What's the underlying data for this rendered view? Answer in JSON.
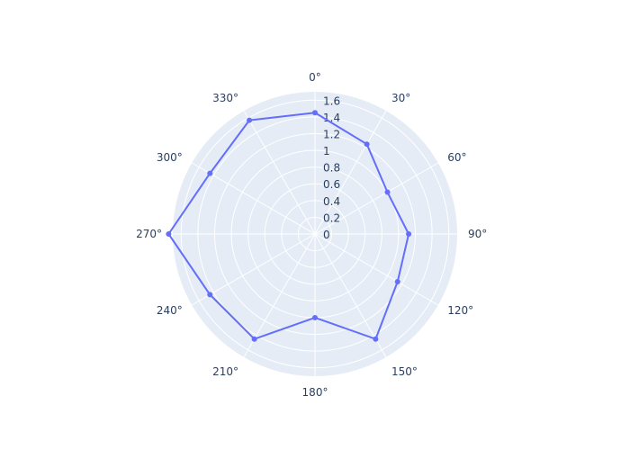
{
  "chart_data": {
    "type": "polar-line",
    "theta_unit": "degrees",
    "direction": "clockwise",
    "rotation": "0° at top",
    "r_range": [
      0,
      1.7
    ],
    "r_ticks": [
      0,
      0.2,
      0.4,
      0.6,
      0.8,
      1,
      1.2,
      1.4,
      1.6
    ],
    "angular_ticks": [
      0,
      30,
      60,
      90,
      120,
      150,
      180,
      210,
      240,
      270,
      300,
      330
    ],
    "angular_tick_labels": [
      "0°",
      "30°",
      "60°",
      "90°",
      "120°",
      "150°",
      "180°",
      "210°",
      "240°",
      "270°",
      "300°",
      "330°"
    ],
    "grid": true,
    "series": [
      {
        "theta": [
          0,
          30,
          60,
          90,
          120,
          150,
          180,
          210,
          240,
          270,
          300,
          330
        ],
        "r": [
          1.45,
          1.24,
          1.0,
          1.12,
          1.14,
          1.45,
          1.0,
          1.45,
          1.45,
          1.75,
          1.45,
          1.57
        ],
        "color": "#636efa"
      }
    ],
    "colors": {
      "background": "#e5ecf6",
      "grid": "#ffffff",
      "text": "#2a3f5f"
    }
  }
}
